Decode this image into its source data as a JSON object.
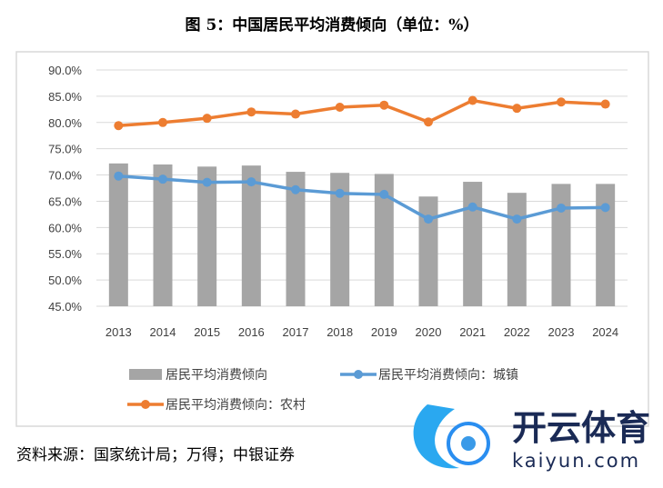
{
  "chart_data": {
    "type": "bar",
    "title": "图 5：中国居民平均消费倾向（单位：%）",
    "categories": [
      "2013",
      "2014",
      "2015",
      "2016",
      "2017",
      "2018",
      "2019",
      "2020",
      "2021",
      "2022",
      "2023",
      "2024"
    ],
    "y_ticks": [
      "45.0%",
      "50.0%",
      "55.0%",
      "60.0%",
      "65.0%",
      "70.0%",
      "75.0%",
      "80.0%",
      "85.0%",
      "90.0%"
    ],
    "ylim": [
      45,
      90
    ],
    "grid": true,
    "legend_placement": "bottom",
    "series": [
      {
        "name": "居民平均消费倾向",
        "kind": "bar",
        "color": "#a5a5a5",
        "values": [
          72.2,
          72.0,
          71.6,
          71.8,
          70.6,
          70.4,
          70.2,
          65.9,
          68.7,
          66.6,
          68.3,
          68.3
        ]
      },
      {
        "name": "居民平均消费倾向：城镇",
        "kind": "line",
        "color": "#5b9bd5",
        "values": [
          69.8,
          69.2,
          68.6,
          68.7,
          67.2,
          66.5,
          66.3,
          61.6,
          63.9,
          61.6,
          63.7,
          63.8
        ]
      },
      {
        "name": "居民平均消费倾向：农村",
        "kind": "line",
        "color": "#ed7d31",
        "values": [
          79.4,
          80.0,
          80.8,
          82.0,
          81.6,
          82.9,
          83.3,
          80.1,
          84.2,
          82.7,
          83.9,
          83.5
        ]
      }
    ]
  },
  "source": "资料来源：国家统计局；万得；中银证券",
  "watermark": {
    "brand": "开云体育",
    "domain": "kaiyun.com"
  }
}
